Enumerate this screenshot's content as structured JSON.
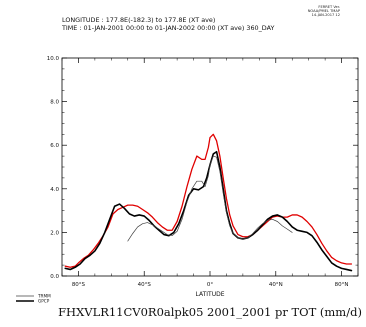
{
  "header": {
    "logo_lines": [
      "FERRET Ver.",
      "NOAA/PMEL TMAP",
      "14-JAN-2017 12"
    ],
    "line1": "LONGITUDE : 177.8E(-182.3) to 177.8E (XT ave)",
    "line2": "TIME : 01-JAN-2001 00:00 to 01-JAN-2002 00:00 (XT ave) 360_DAY"
  },
  "footer": {
    "title": "FHXVLR11CV0R0alpk05 2001_2001 pr TOT (mm/d)"
  },
  "chart_data": {
    "type": "line",
    "xlabel": "LATITUDE",
    "ylabel": "",
    "xlim": [
      -90,
      90
    ],
    "ylim": [
      0,
      10
    ],
    "x_ticks": [
      {
        "value": -80,
        "label": "80°S"
      },
      {
        "value": -40,
        "label": "40°S"
      },
      {
        "value": 0,
        "label": "0°"
      },
      {
        "value": 40,
        "label": "40°N"
      },
      {
        "value": 80,
        "label": "80°N"
      }
    ],
    "y_ticks": [
      {
        "value": 0,
        "label": "0.0"
      },
      {
        "value": 2,
        "label": "2.0"
      },
      {
        "value": 4,
        "label": "4.0"
      },
      {
        "value": 6,
        "label": "6.0"
      },
      {
        "value": 8,
        "label": "8.0"
      },
      {
        "value": 10,
        "label": "10.0"
      }
    ],
    "grid": false,
    "legend_position": "bottom-left",
    "series": [
      {
        "name": "",
        "color": "#e00000",
        "width": 1.3,
        "x": [
          -88,
          -85,
          -82,
          -80,
          -77,
          -74,
          -71,
          -68,
          -65,
          -62,
          -59,
          -56,
          -53,
          -50,
          -47,
          -44,
          -41,
          -38,
          -35,
          -32,
          -29,
          -26,
          -23,
          -20,
          -17,
          -14,
          -11,
          -8,
          -5,
          -3,
          -1,
          0,
          2,
          4,
          6,
          8,
          10,
          12,
          14,
          17,
          20,
          23,
          26,
          29,
          32,
          35,
          38,
          41,
          44,
          47,
          50,
          53,
          56,
          59,
          62,
          65,
          68,
          71,
          74,
          77,
          80,
          83,
          86
        ],
        "y": [
          0.45,
          0.4,
          0.45,
          0.6,
          0.8,
          0.95,
          1.2,
          1.5,
          1.85,
          2.25,
          2.85,
          3.05,
          3.15,
          3.25,
          3.25,
          3.2,
          3.05,
          2.9,
          2.7,
          2.45,
          2.25,
          2.1,
          2.1,
          2.5,
          3.2,
          4.1,
          4.9,
          5.5,
          5.35,
          5.35,
          5.9,
          6.35,
          6.5,
          6.2,
          5.5,
          4.5,
          3.55,
          2.8,
          2.3,
          1.9,
          1.8,
          1.8,
          1.9,
          2.1,
          2.3,
          2.5,
          2.7,
          2.75,
          2.7,
          2.7,
          2.8,
          2.8,
          2.7,
          2.5,
          2.25,
          1.9,
          1.5,
          1.15,
          0.85,
          0.7,
          0.6,
          0.55,
          0.55
        ]
      },
      {
        "name": "GPCP",
        "color": "#000000",
        "width": 1.6,
        "x": [
          -88,
          -85,
          -82,
          -79,
          -76,
          -73,
          -70,
          -67,
          -64,
          -61,
          -58,
          -55,
          -52,
          -49,
          -46,
          -43,
          -40,
          -37,
          -34,
          -31,
          -28,
          -25,
          -22,
          -19,
          -16,
          -13,
          -10,
          -7,
          -4,
          -2,
          0,
          2,
          4,
          6,
          8,
          10,
          12,
          14,
          17,
          20,
          23,
          26,
          29,
          32,
          35,
          38,
          41,
          44,
          47,
          50,
          53,
          56,
          59,
          62,
          65,
          68,
          71,
          74,
          77,
          80,
          83,
          86
        ],
        "y": [
          0.35,
          0.3,
          0.4,
          0.55,
          0.8,
          0.95,
          1.15,
          1.5,
          2.0,
          2.6,
          3.2,
          3.3,
          3.1,
          2.85,
          2.75,
          2.8,
          2.75,
          2.55,
          2.3,
          2.1,
          1.9,
          1.85,
          2.0,
          2.4,
          3.0,
          3.7,
          4.0,
          3.95,
          4.1,
          4.5,
          5.1,
          5.6,
          5.7,
          5.0,
          4.0,
          3.0,
          2.4,
          1.95,
          1.75,
          1.7,
          1.75,
          1.9,
          2.1,
          2.35,
          2.6,
          2.75,
          2.8,
          2.7,
          2.5,
          2.25,
          2.1,
          2.05,
          2.0,
          1.85,
          1.55,
          1.2,
          0.9,
          0.6,
          0.45,
          0.35,
          0.3,
          0.25
        ]
      },
      {
        "name": "TRMM",
        "color": "#404040",
        "width": 0.7,
        "x": [
          -50,
          -47,
          -44,
          -41,
          -38,
          -35,
          -32,
          -29,
          -26,
          -23,
          -20,
          -17,
          -14,
          -11,
          -8,
          -5,
          -3,
          -1,
          0,
          2,
          4,
          6,
          8,
          10,
          12,
          14,
          17,
          20,
          23,
          26,
          29,
          32,
          35,
          38,
          41,
          44,
          47,
          50
        ],
        "y": [
          1.6,
          1.95,
          2.25,
          2.4,
          2.45,
          2.35,
          2.2,
          2.05,
          1.9,
          1.85,
          2.05,
          2.6,
          3.4,
          4.0,
          4.35,
          4.35,
          4.1,
          4.6,
          5.1,
          5.5,
          5.45,
          4.8,
          3.8,
          2.9,
          2.3,
          1.95,
          1.75,
          1.7,
          1.75,
          1.95,
          2.2,
          2.4,
          2.55,
          2.6,
          2.5,
          2.3,
          2.15,
          2.0
        ]
      }
    ]
  }
}
